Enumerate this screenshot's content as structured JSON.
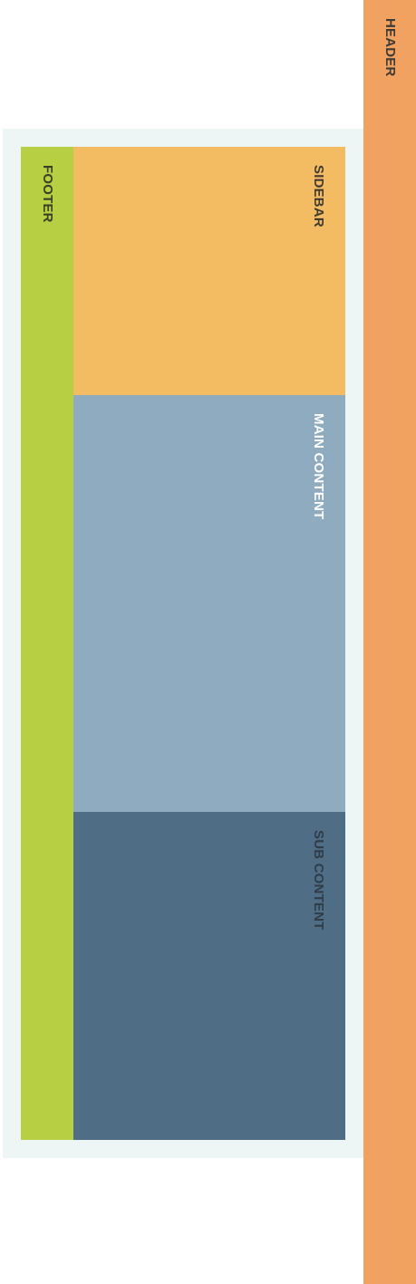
{
  "layout": {
    "header": {
      "label": "HEADER",
      "color": "#f1a261"
    },
    "sidebar": {
      "label": "SIDEBAR",
      "color": "#f4bc62"
    },
    "main_content": {
      "label": "MAIN CONTENT",
      "color": "#8fabc0"
    },
    "sub_content": {
      "label": "SUB CONTENT",
      "color": "#4f6d85"
    },
    "footer": {
      "label": "FOOTER",
      "color": "#b7cf43"
    },
    "container_color": "#edf5f5"
  }
}
